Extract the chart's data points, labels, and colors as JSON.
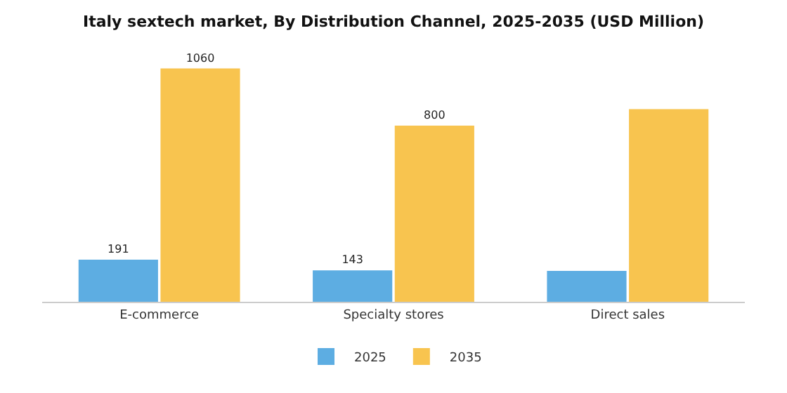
{
  "chart_data": {
    "type": "bar",
    "title": "Italy sextech market, By Distribution Channel, 2025-2035 (USD Million)",
    "categories": [
      "E-commerce",
      "Specialty stores",
      "Direct sales"
    ],
    "series": [
      {
        "name": "2025",
        "color": "#5dade2",
        "values": [
          191,
          143,
          140
        ],
        "value_labels": [
          "191",
          "143",
          null
        ]
      },
      {
        "name": "2035",
        "color": "#f8c44f",
        "values": [
          1060,
          800,
          875
        ],
        "value_labels": [
          "1060",
          "800",
          null
        ]
      }
    ],
    "legend": "bottom",
    "grid": false
  }
}
